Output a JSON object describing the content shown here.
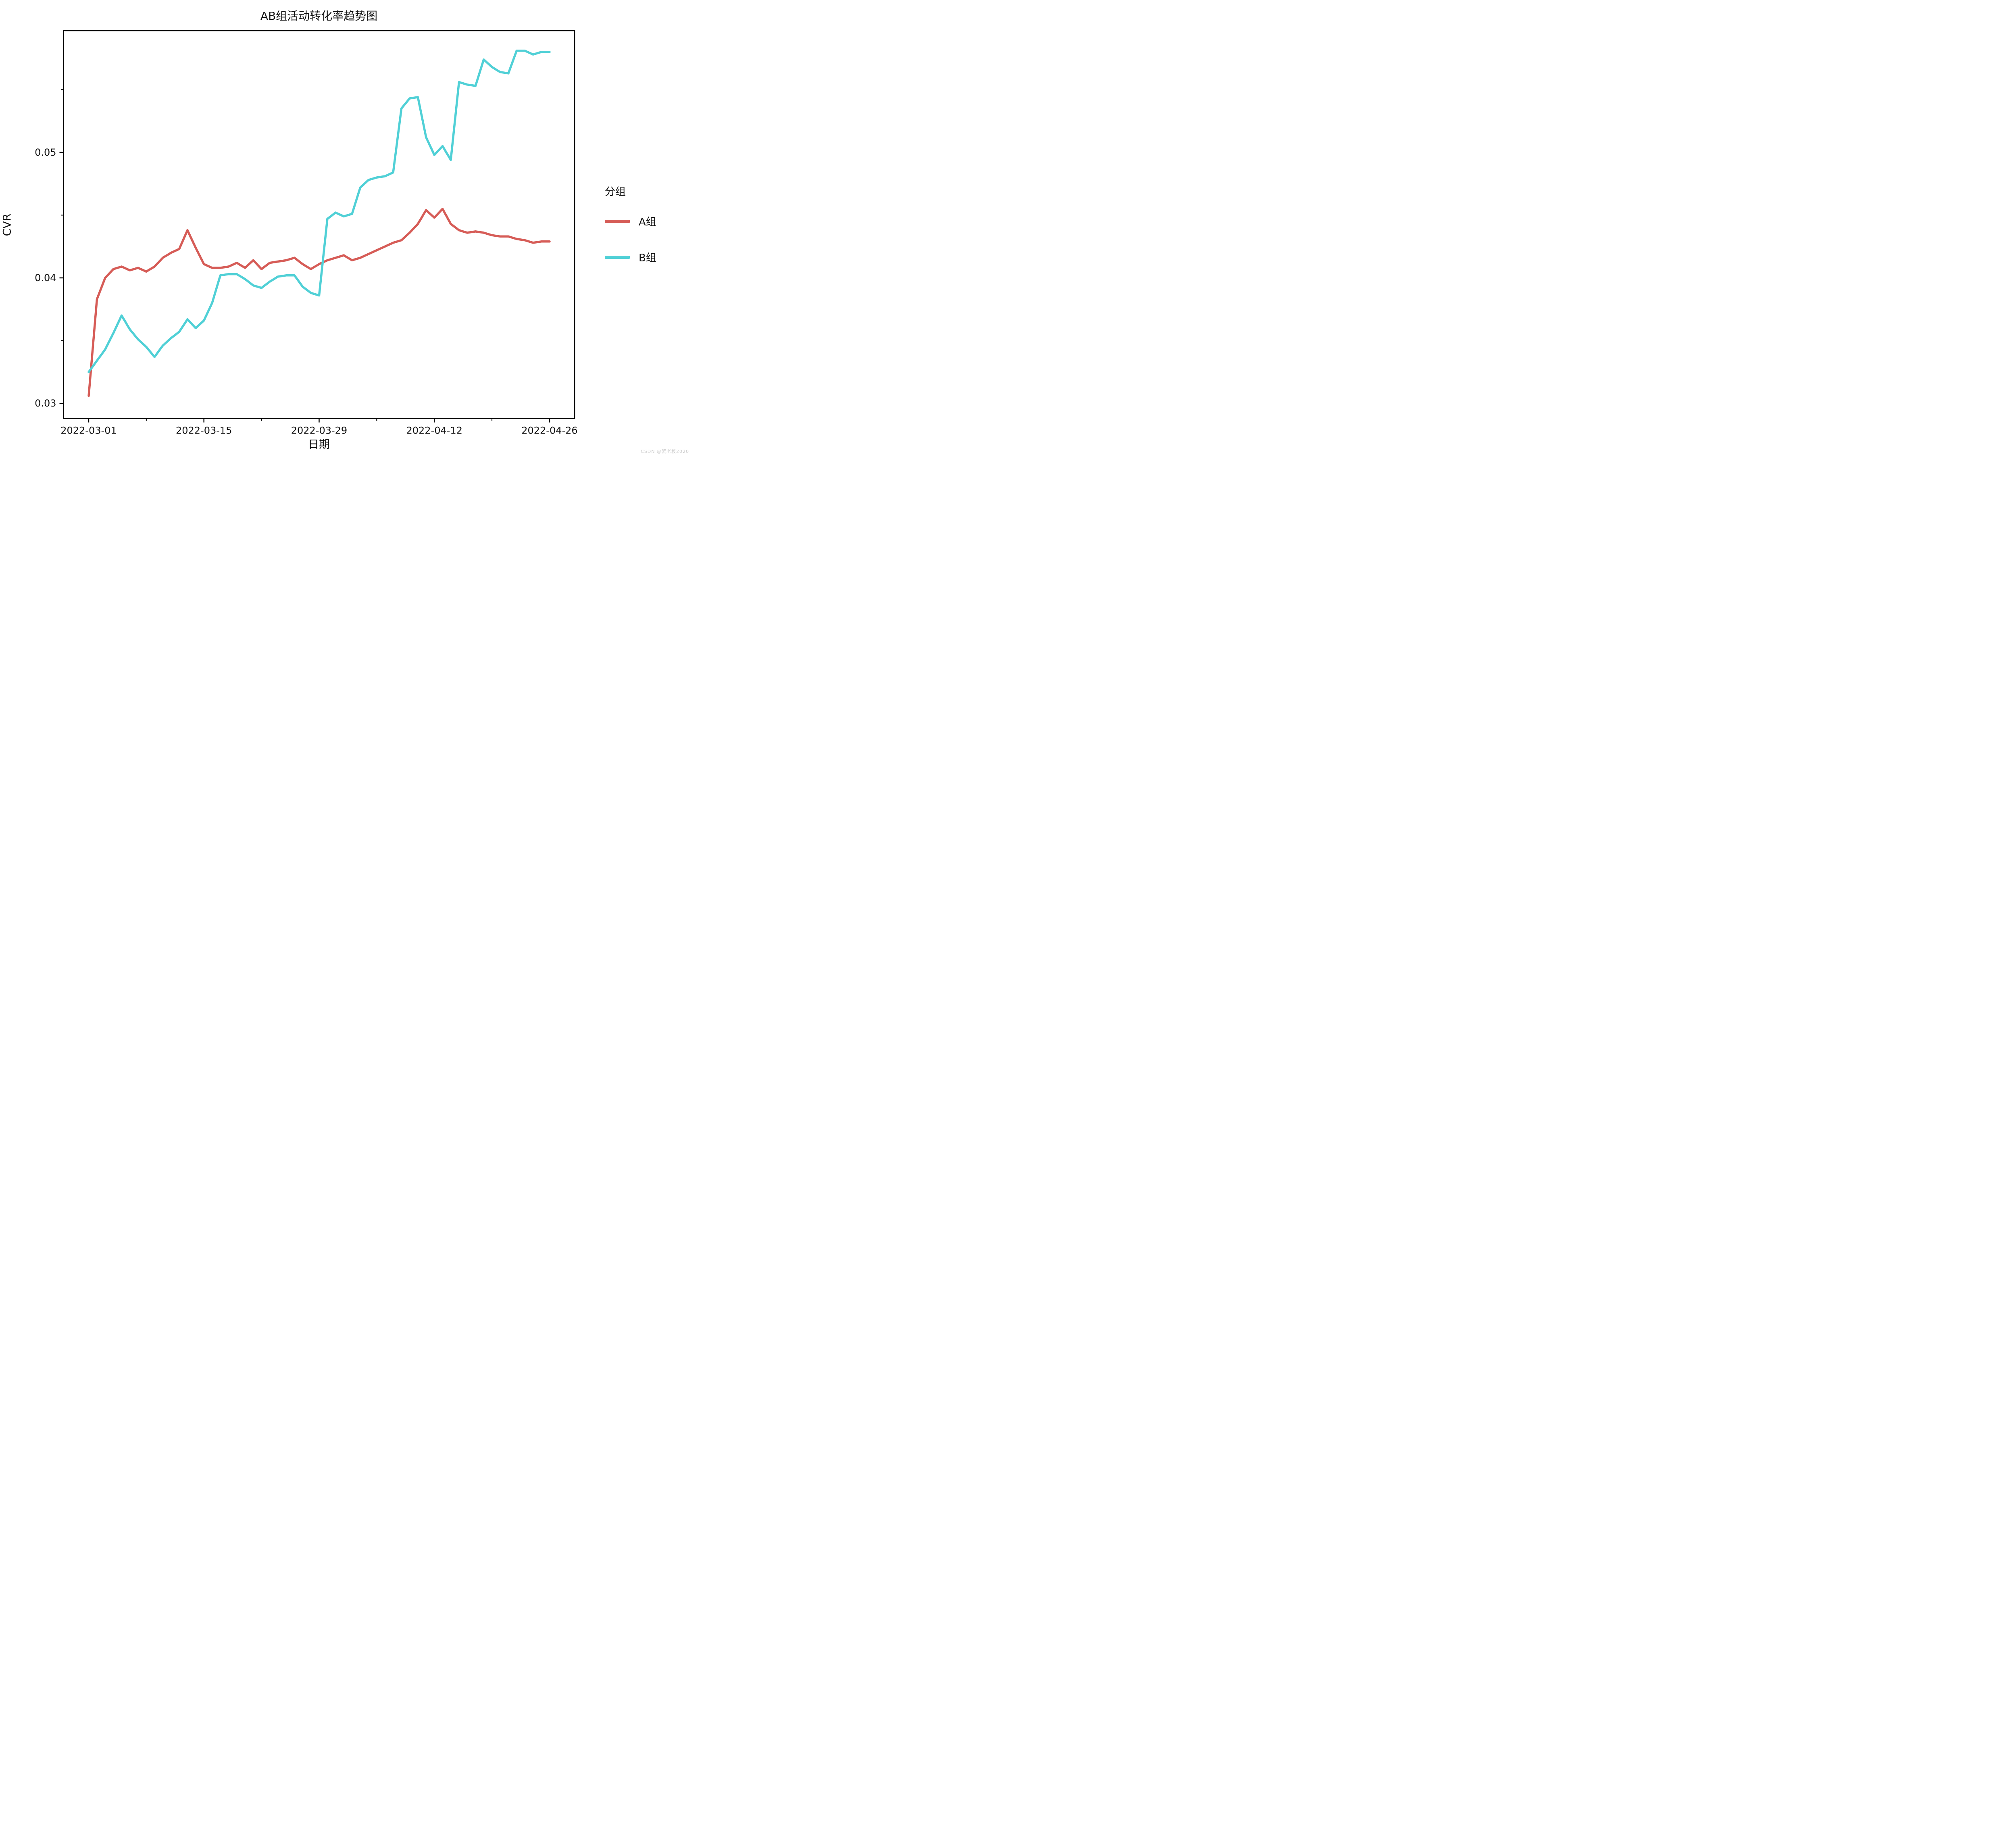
{
  "title": "AB组活动转化率趋势图",
  "xlabel": "日期",
  "ylabel": "CVR",
  "watermark": "CSDN @蟹老板2020",
  "legend": {
    "title": "分组",
    "items": [
      {
        "label": "A组",
        "color": "#d65c57"
      },
      {
        "label": "B组",
        "color": "#50d0d6"
      }
    ]
  },
  "chart_data": {
    "type": "line",
    "title": "AB组活动转化率趋势图",
    "xlabel": "日期",
    "ylabel": "CVR",
    "legend_title": "分组",
    "legend_position": "right-outside",
    "grid": false,
    "x_dates": [
      "2022-03-01",
      "2022-03-02",
      "2022-03-03",
      "2022-03-04",
      "2022-03-05",
      "2022-03-06",
      "2022-03-07",
      "2022-03-08",
      "2022-03-09",
      "2022-03-10",
      "2022-03-11",
      "2022-03-12",
      "2022-03-13",
      "2022-03-14",
      "2022-03-15",
      "2022-03-16",
      "2022-03-17",
      "2022-03-18",
      "2022-03-19",
      "2022-03-20",
      "2022-03-21",
      "2022-03-22",
      "2022-03-23",
      "2022-03-24",
      "2022-03-25",
      "2022-03-26",
      "2022-03-27",
      "2022-03-28",
      "2022-03-29",
      "2022-03-30",
      "2022-03-31",
      "2022-04-01",
      "2022-04-02",
      "2022-04-03",
      "2022-04-04",
      "2022-04-05",
      "2022-04-06",
      "2022-04-07",
      "2022-04-08",
      "2022-04-09",
      "2022-04-10",
      "2022-04-11",
      "2022-04-12",
      "2022-04-13",
      "2022-04-14",
      "2022-04-15",
      "2022-04-16",
      "2022-04-17",
      "2022-04-18",
      "2022-04-19",
      "2022-04-20",
      "2022-04-21",
      "2022-04-22",
      "2022-04-23",
      "2022-04-24",
      "2022-04-25",
      "2022-04-26"
    ],
    "series": [
      {
        "name": "A组",
        "color": "#d65c57",
        "values": [
          0.0306,
          0.0383,
          0.04,
          0.0407,
          0.0409,
          0.0406,
          0.0408,
          0.0405,
          0.0409,
          0.0416,
          0.042,
          0.0423,
          0.0438,
          0.0424,
          0.0411,
          0.0408,
          0.0408,
          0.0409,
          0.0412,
          0.0408,
          0.0414,
          0.0407,
          0.0412,
          0.0413,
          0.0414,
          0.0416,
          0.0411,
          0.0407,
          0.0411,
          0.0414,
          0.0416,
          0.0418,
          0.0414,
          0.0416,
          0.0419,
          0.0422,
          0.0425,
          0.0428,
          0.043,
          0.0436,
          0.0443,
          0.0454,
          0.0448,
          0.0455,
          0.0443,
          0.0438,
          0.0436,
          0.0437,
          0.0436,
          0.0434,
          0.0433,
          0.0433,
          0.0431,
          0.043,
          0.0428,
          0.0429,
          0.0429
        ]
      },
      {
        "name": "B组",
        "color": "#50d0d6",
        "values": [
          0.0325,
          0.0334,
          0.0343,
          0.0356,
          0.037,
          0.0359,
          0.0351,
          0.0345,
          0.0337,
          0.0346,
          0.0352,
          0.0357,
          0.0367,
          0.036,
          0.0366,
          0.038,
          0.0402,
          0.0403,
          0.0403,
          0.0399,
          0.0394,
          0.0392,
          0.0397,
          0.0401,
          0.0402,
          0.0402,
          0.0393,
          0.0388,
          0.0386,
          0.0447,
          0.0452,
          0.0449,
          0.0451,
          0.0472,
          0.0478,
          0.048,
          0.0481,
          0.0484,
          0.0535,
          0.0543,
          0.0544,
          0.0512,
          0.0498,
          0.0505,
          0.0494,
          0.0556,
          0.0554,
          0.0553,
          0.0574,
          0.0568,
          0.0564,
          0.0563,
          0.0581,
          0.0581,
          0.0578,
          0.058,
          0.058
        ]
      }
    ],
    "xticks_major": [
      {
        "day": 0,
        "label": "2022-03-01"
      },
      {
        "day": 14,
        "label": "2022-03-15"
      },
      {
        "day": 28,
        "label": "2022-03-29"
      },
      {
        "day": 42,
        "label": "2022-04-12"
      },
      {
        "day": 56,
        "label": "2022-04-26"
      }
    ],
    "xticks_minor_days": [
      7,
      21,
      35,
      49
    ],
    "yticks_major": [
      {
        "value": 0.03,
        "label": "0.03"
      },
      {
        "value": 0.04,
        "label": "0.04"
      },
      {
        "value": 0.05,
        "label": "0.05"
      }
    ],
    "yticks_minor": [
      0.035,
      0.045,
      0.055
    ],
    "xlim_days": [
      -3.06,
      59.04
    ],
    "ylim": [
      0.0288,
      0.0597
    ],
    "axis_color": "#000000",
    "line_width": 5.5
  }
}
